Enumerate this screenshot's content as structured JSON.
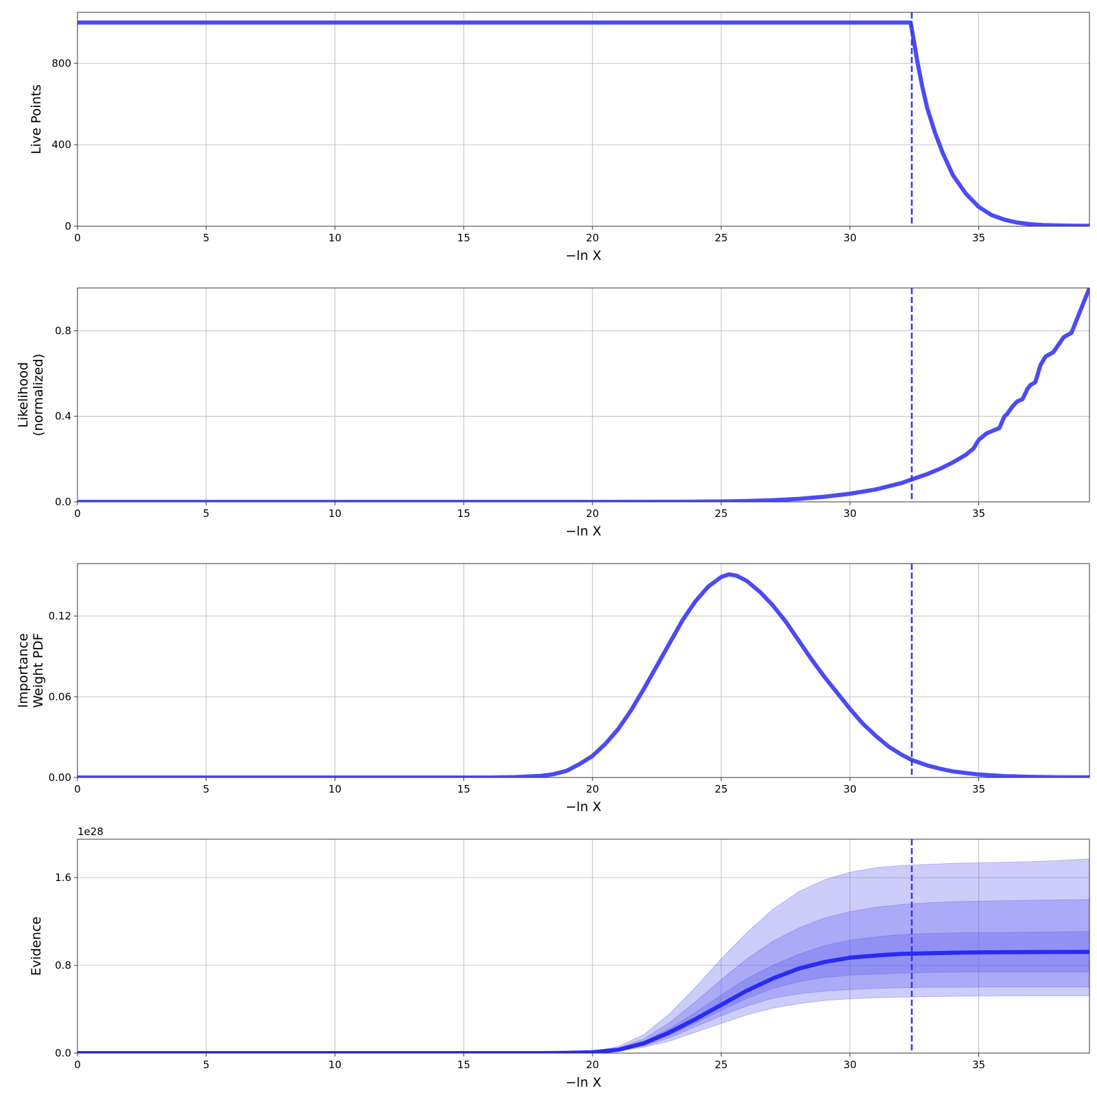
{
  "colors": {
    "line": "#4b4bf5",
    "evidence_line": "#2a2af5",
    "band": "#5a5af0",
    "dashed": "#3535e0",
    "grid": "#b0b0b0",
    "frame": "#333333"
  },
  "chart_data": [
    {
      "type": "line",
      "ylabel": [
        "Live Points"
      ],
      "xlabel": "−ln X",
      "xlim": [
        0,
        39.3
      ],
      "ylim": [
        0,
        1050
      ],
      "xticks": [
        0,
        5,
        10,
        15,
        20,
        25,
        30,
        35
      ],
      "yticks": [
        0,
        400,
        800
      ],
      "ytick_labels": [
        "0",
        "400",
        "800"
      ],
      "grid": true,
      "vline": 32.4,
      "series": [
        {
          "x": [
            0,
            32.35,
            32.4,
            32.6,
            32.8,
            33.0,
            33.3,
            33.6,
            34.0,
            34.5,
            35.0,
            35.5,
            36.0,
            36.5,
            37.0,
            37.5,
            38.0,
            38.5,
            39.3
          ],
          "y": [
            1000,
            1000,
            970,
            820,
            690,
            580,
            460,
            360,
            250,
            160,
            95,
            55,
            32,
            18,
            10,
            6,
            4,
            3,
            2
          ]
        }
      ]
    },
    {
      "type": "line",
      "ylabel": [
        "Likelihood",
        "(normalized)"
      ],
      "xlabel": "−ln X",
      "xlim": [
        0,
        39.3
      ],
      "ylim": [
        0,
        1.0
      ],
      "xticks": [
        0,
        5,
        10,
        15,
        20,
        25,
        30,
        35
      ],
      "yticks": [
        0,
        0.4,
        0.8
      ],
      "ytick_labels": [
        "0.0",
        "0.4",
        "0.8"
      ],
      "grid": true,
      "vline": 32.4,
      "series": [
        {
          "x": [
            0,
            20,
            24,
            25,
            26,
            27,
            28,
            29,
            30,
            31,
            32,
            32.4,
            33,
            33.5,
            34,
            34.5,
            34.8,
            35.0,
            35.3,
            35.5,
            35.8,
            36.0,
            36.1,
            36.3,
            36.5,
            36.7,
            36.9,
            37.0,
            37.2,
            37.4,
            37.6,
            37.9,
            38.3,
            38.6,
            39.3
          ],
          "y": [
            0,
            0,
            0.001,
            0.002,
            0.004,
            0.008,
            0.014,
            0.024,
            0.038,
            0.058,
            0.088,
            0.105,
            0.13,
            0.155,
            0.185,
            0.22,
            0.25,
            0.29,
            0.32,
            0.33,
            0.345,
            0.4,
            0.41,
            0.445,
            0.47,
            0.48,
            0.53,
            0.545,
            0.56,
            0.64,
            0.68,
            0.7,
            0.77,
            0.79,
            1.0
          ]
        }
      ]
    },
    {
      "type": "line",
      "ylabel": [
        "Importance",
        "Weight PDF"
      ],
      "xlabel": "−ln X",
      "xlim": [
        0,
        39.3
      ],
      "ylim": [
        0,
        0.159
      ],
      "xticks": [
        0,
        5,
        10,
        15,
        20,
        25,
        30,
        35
      ],
      "yticks": [
        0,
        0.06,
        0.12
      ],
      "ytick_labels": [
        "0.00",
        "0.06",
        "0.12"
      ],
      "grid": true,
      "vline": 32.4,
      "series": [
        {
          "x": [
            0,
            16,
            17,
            18,
            18.5,
            19,
            19.5,
            20,
            20.5,
            21,
            21.5,
            22,
            22.5,
            23,
            23.5,
            24,
            24.5,
            25,
            25.3,
            25.6,
            26,
            26.5,
            27,
            27.5,
            28,
            28.5,
            29,
            29.5,
            30,
            30.5,
            31,
            31.5,
            32,
            32.4,
            33,
            33.5,
            34,
            35,
            36,
            37,
            38,
            39.3
          ],
          "y": [
            0,
            0,
            0.0003,
            0.0012,
            0.0025,
            0.005,
            0.01,
            0.016,
            0.025,
            0.036,
            0.05,
            0.066,
            0.083,
            0.1,
            0.117,
            0.131,
            0.142,
            0.149,
            0.151,
            0.15,
            0.146,
            0.138,
            0.128,
            0.116,
            0.102,
            0.088,
            0.075,
            0.063,
            0.051,
            0.04,
            0.031,
            0.023,
            0.017,
            0.013,
            0.009,
            0.0065,
            0.0045,
            0.0022,
            0.001,
            0.0005,
            0.0002,
            0.0001
          ]
        }
      ]
    },
    {
      "type": "area",
      "ylabel": [
        "Evidence"
      ],
      "xlabel": "−ln X",
      "offset_label": "1e28",
      "xlim": [
        0,
        39.3
      ],
      "ylim": [
        0,
        1.95
      ],
      "xticks": [
        0,
        5,
        10,
        15,
        20,
        25,
        30,
        35
      ],
      "yticks": [
        0,
        0.8,
        1.6
      ],
      "ytick_labels": [
        "0.0",
        "0.8",
        "1.6"
      ],
      "grid": true,
      "vline": 32.4,
      "x": [
        0,
        18,
        19,
        20,
        21,
        22,
        23,
        24,
        25,
        26,
        27,
        28,
        29,
        30,
        31,
        32,
        33,
        34,
        35,
        36,
        37,
        38,
        39.3
      ],
      "median": [
        0,
        0,
        0.002,
        0.008,
        0.03,
        0.09,
        0.19,
        0.31,
        0.44,
        0.57,
        0.68,
        0.77,
        0.83,
        0.87,
        0.89,
        0.905,
        0.91,
        0.915,
        0.918,
        0.92,
        0.921,
        0.922,
        0.923
      ],
      "bands": [
        {
          "lower": [
            0,
            0,
            0.001,
            0.005,
            0.018,
            0.055,
            0.11,
            0.19,
            0.27,
            0.35,
            0.41,
            0.45,
            0.48,
            0.495,
            0.505,
            0.51,
            0.515,
            0.518,
            0.52,
            0.521,
            0.522,
            0.522,
            0.522
          ],
          "upper": [
            0,
            0,
            0.004,
            0.015,
            0.06,
            0.17,
            0.36,
            0.6,
            0.86,
            1.1,
            1.31,
            1.47,
            1.58,
            1.65,
            1.69,
            1.71,
            1.72,
            1.73,
            1.735,
            1.74,
            1.745,
            1.755,
            1.77
          ]
        },
        {
          "lower": [
            0,
            0,
            0.0015,
            0.006,
            0.022,
            0.068,
            0.14,
            0.24,
            0.34,
            0.43,
            0.5,
            0.54,
            0.565,
            0.58,
            0.59,
            0.595,
            0.6,
            0.6,
            0.602,
            0.602,
            0.602,
            0.602,
            0.602
          ],
          "upper": [
            0,
            0,
            0.003,
            0.011,
            0.045,
            0.13,
            0.28,
            0.47,
            0.67,
            0.86,
            1.02,
            1.14,
            1.23,
            1.29,
            1.33,
            1.355,
            1.37,
            1.38,
            1.385,
            1.39,
            1.393,
            1.397,
            1.4
          ]
        },
        {
          "lower": [
            0,
            0,
            0.0018,
            0.007,
            0.026,
            0.078,
            0.165,
            0.275,
            0.39,
            0.5,
            0.59,
            0.65,
            0.69,
            0.71,
            0.72,
            0.73,
            0.735,
            0.738,
            0.74,
            0.74,
            0.74,
            0.74,
            0.74
          ],
          "upper": [
            0,
            0,
            0.0025,
            0.009,
            0.036,
            0.105,
            0.225,
            0.37,
            0.53,
            0.68,
            0.8,
            0.9,
            0.98,
            1.03,
            1.06,
            1.08,
            1.09,
            1.095,
            1.1,
            1.1,
            1.102,
            1.105,
            1.11
          ]
        }
      ]
    }
  ]
}
